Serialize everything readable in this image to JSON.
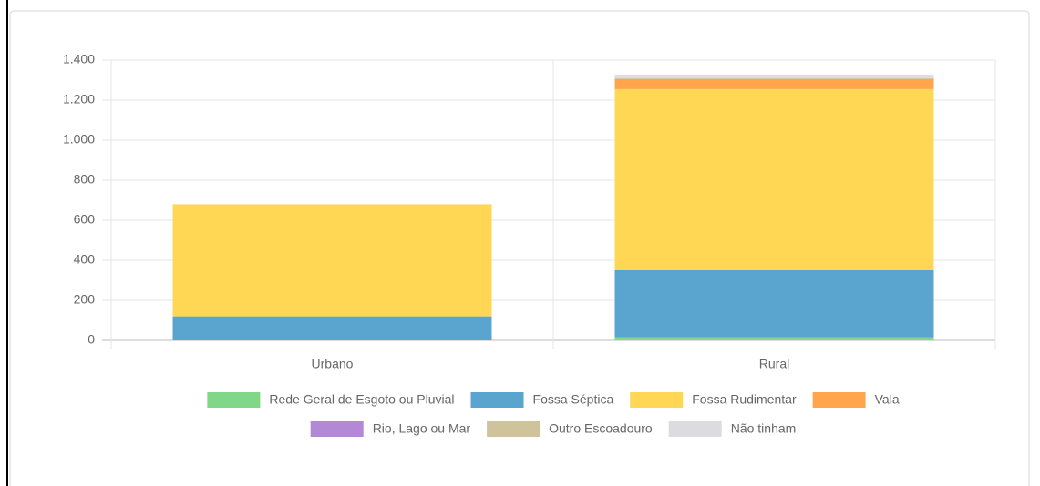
{
  "chart_data": {
    "type": "stacked_bar",
    "categories": [
      "Urbano",
      "Rural"
    ],
    "series": [
      {
        "name": "Rede Geral de Esgoto ou Pluvial",
        "color": "#7fd787",
        "values": [
          0,
          15
        ]
      },
      {
        "name": "Fossa Séptica",
        "color": "#5aa5d0",
        "values": [
          120,
          335
        ]
      },
      {
        "name": "Fossa Rudimentar",
        "color": "#ffd755",
        "values": [
          560,
          905
        ]
      },
      {
        "name": "Vala",
        "color": "#ffa64d",
        "values": [
          0,
          50
        ]
      },
      {
        "name": "Rio, Lago ou Mar",
        "color": "#b389d6",
        "values": [
          0,
          0
        ]
      },
      {
        "name": "Outro Escoadouro",
        "color": "#cfc39c",
        "values": [
          0,
          5
        ]
      },
      {
        "name": "Não tinham",
        "color": "#dcdce0",
        "values": [
          0,
          17
        ]
      }
    ],
    "ylim": [
      0,
      1400
    ],
    "yticks": [
      0,
      200,
      400,
      600,
      800,
      {
        "value": 1000,
        "label": "1.000"
      },
      {
        "value": 1200,
        "label": "1.200"
      },
      {
        "value": 1400,
        "label": "1.400"
      }
    ],
    "grid": true,
    "legend": "bottom"
  }
}
